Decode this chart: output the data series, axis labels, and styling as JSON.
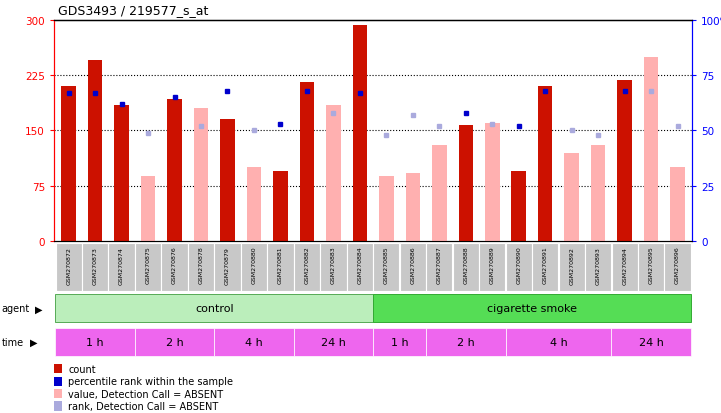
{
  "title": "GDS3493 / 219577_s_at",
  "samples": [
    "GSM270872",
    "GSM270873",
    "GSM270874",
    "GSM270875",
    "GSM270876",
    "GSM270878",
    "GSM270879",
    "GSM270880",
    "GSM270881",
    "GSM270882",
    "GSM270883",
    "GSM270884",
    "GSM270885",
    "GSM270886",
    "GSM270887",
    "GSM270888",
    "GSM270889",
    "GSM270890",
    "GSM270891",
    "GSM270892",
    "GSM270893",
    "GSM270894",
    "GSM270895",
    "GSM270896"
  ],
  "count_present": [
    210,
    245,
    185,
    0,
    192,
    0,
    165,
    0,
    95,
    215,
    0,
    293,
    0,
    0,
    0,
    157,
    0,
    95,
    210,
    0,
    0,
    218,
    0,
    0
  ],
  "count_absent": [
    0,
    0,
    0,
    88,
    0,
    180,
    0,
    100,
    0,
    0,
    185,
    0,
    88,
    92,
    130,
    0,
    160,
    0,
    0,
    120,
    130,
    0,
    250,
    100
  ],
  "rank_present": [
    67,
    67,
    62,
    0,
    65,
    0,
    68,
    0,
    53,
    68,
    0,
    67,
    0,
    0,
    0,
    58,
    0,
    52,
    68,
    0,
    0,
    68,
    0,
    0
  ],
  "rank_absent": [
    0,
    0,
    0,
    49,
    0,
    52,
    0,
    50,
    0,
    0,
    58,
    0,
    48,
    57,
    52,
    0,
    53,
    0,
    0,
    50,
    48,
    0,
    68,
    52
  ],
  "ylim_left": [
    0,
    300
  ],
  "ylim_right": [
    0,
    100
  ],
  "yticks_left": [
    0,
    75,
    150,
    225,
    300
  ],
  "yticks_right": [
    0,
    25,
    50,
    75,
    100
  ],
  "count_color": "#CC1100",
  "count_absent_color": "#FFB0B0",
  "rank_color": "#0000CC",
  "rank_absent_color": "#AAAADD",
  "grid_dotted_at": [
    75,
    150,
    225
  ],
  "time_groups": [
    {
      "label": "1 h",
      "start": 0,
      "end": 2
    },
    {
      "label": "2 h",
      "start": 3,
      "end": 5
    },
    {
      "label": "4 h",
      "start": 6,
      "end": 8
    },
    {
      "label": "24 h",
      "start": 9,
      "end": 11
    },
    {
      "label": "1 h",
      "start": 12,
      "end": 13
    },
    {
      "label": "2 h",
      "start": 14,
      "end": 16
    },
    {
      "label": "4 h",
      "start": 17,
      "end": 20
    },
    {
      "label": "24 h",
      "start": 21,
      "end": 23
    }
  ],
  "agent_groups": [
    {
      "label": "control",
      "start": 0,
      "end": 11,
      "color": "#AAEAAA"
    },
    {
      "label": "cigarette smoke",
      "start": 12,
      "end": 23,
      "color": "#44DD44"
    }
  ],
  "time_color_light": "#EE88EE",
  "time_color_dark": "#CC44CC",
  "agent_color_light": "#AAEAAA",
  "agent_color_dark": "#44DD44",
  "label_bg": "#C8C8C8",
  "legend_items": [
    {
      "color": "#CC1100",
      "label": "count"
    },
    {
      "color": "#0000CC",
      "label": "percentile rank within the sample"
    },
    {
      "color": "#FFB0B0",
      "label": "value, Detection Call = ABSENT"
    },
    {
      "color": "#AAAADD",
      "label": "rank, Detection Call = ABSENT"
    }
  ]
}
